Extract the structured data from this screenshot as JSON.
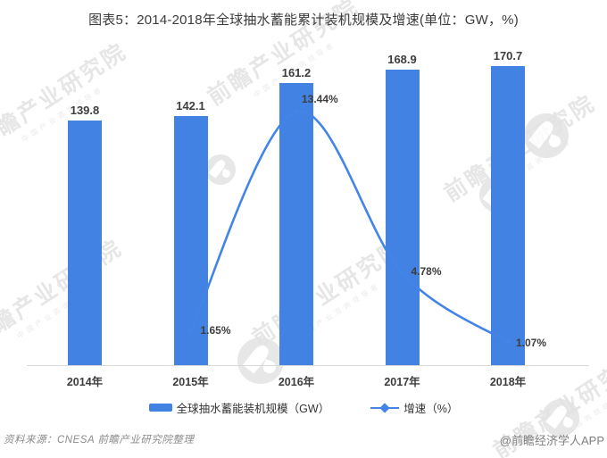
{
  "title": "图表5：2014-2018年全球抽水蓄能累计装机规模及增速(单位：GW，%)",
  "chart_data": {
    "type": "combo",
    "title": "图表5：2014-2018年全球抽水蓄能累计装机规模及增速(单位：GW，%)",
    "categories": [
      "2014年",
      "2015年",
      "2016年",
      "2017年",
      "2018年"
    ],
    "grid": false,
    "y_axes_visible": false,
    "legend_position": "bottom",
    "series": [
      {
        "name": "全球抽水蓄能装机规模（GW）",
        "type": "bar",
        "axis": "left",
        "ylim": [
          0,
          180
        ],
        "unit": "GW",
        "values": [
          139.8,
          142.1,
          161.2,
          168.9,
          170.7
        ],
        "labels": [
          "139.8",
          "142.1",
          "161.2",
          "168.9",
          "170.7"
        ],
        "color": "#4182E2"
      },
      {
        "name": "增速（%）",
        "type": "line",
        "axis": "right",
        "ylim": [
          0,
          17
        ],
        "unit": "%",
        "smooth": true,
        "marker": "circle",
        "x_categories": [
          "2015年",
          "2016年",
          "2017年",
          "2018年"
        ],
        "values": [
          1.65,
          13.44,
          4.78,
          1.07
        ],
        "labels": [
          "1.65%",
          "13.44%",
          "4.78%",
          "1.07%"
        ],
        "color": "#4285E6",
        "label_offsets": [
          [
            11,
            -8
          ],
          [
            6,
            -21
          ],
          [
            10,
            -9
          ],
          [
            9,
            -6
          ]
        ]
      }
    ]
  },
  "legend": {
    "bar_label": "全球抽水蓄能装机规模（GW）",
    "line_label": "增速（%）"
  },
  "footer": {
    "source": "资料来源：CNESA 前瞻产业研究院整理",
    "credit": "@前瞻经济学人APP"
  },
  "watermark": {
    "text": "前瞻产业研究院",
    "subtext": "中国产业咨询领导者",
    "color": "#d7d7d7"
  }
}
